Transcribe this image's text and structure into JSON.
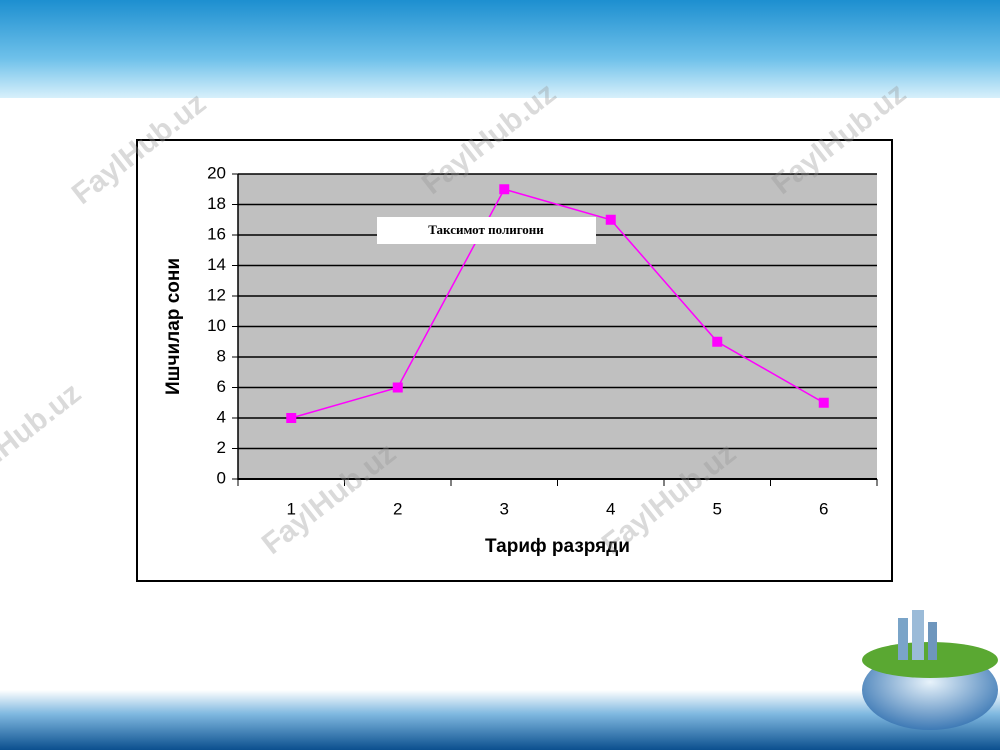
{
  "chart_data": {
    "type": "line",
    "title": "Таксимот полигони",
    "x_label": "Тариф разряди",
    "y_label": "Ишчилар сони",
    "categories": [
      "1",
      "2",
      "3",
      "4",
      "5",
      "6"
    ],
    "series": [
      {
        "name": "Ишчилар сони",
        "color": "#ff00ff",
        "values": [
          4,
          6,
          19,
          17,
          9,
          5
        ]
      }
    ],
    "ylim": [
      0,
      20
    ],
    "yticks": [
      0,
      2,
      4,
      6,
      8,
      10,
      12,
      14,
      16,
      18,
      20
    ],
    "grid": true
  },
  "watermark": "FaylHub.uz"
}
